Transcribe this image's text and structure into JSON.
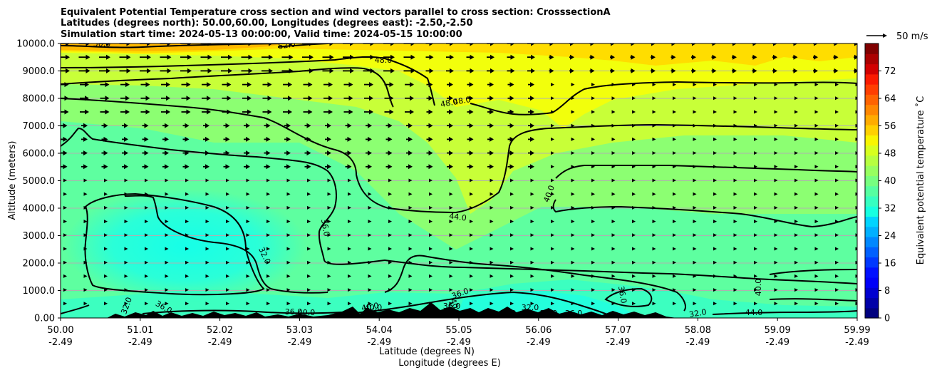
{
  "titles": [
    "Equivalent Potential Temperature cross section and wind vectors parallel to cross section: CrosssectionA",
    "Latitudes (degrees north): 50.00,60.00, Longitudes (degrees east): -2.50,-2.50",
    "Simulation start time: 2024-05-13 00:00:00, Valid time: 2024-05-15 10:00:00"
  ],
  "chart_data": {
    "type": "heatmap",
    "subtype": "filled contour cross section with contour lines and wind vectors",
    "xlabel": "Latitude (degrees N)",
    "xlabel2": "Longitude (degrees E)",
    "ylabel": "Altitude (meters)",
    "x_ticks": [
      {
        "lat": "50.00",
        "lon": "-2.49"
      },
      {
        "lat": "51.01",
        "lon": "-2.49"
      },
      {
        "lat": "52.02",
        "lon": "-2.49"
      },
      {
        "lat": "53.03",
        "lon": "-2.49"
      },
      {
        "lat": "54.04",
        "lon": "-2.49"
      },
      {
        "lat": "55.05",
        "lon": "-2.49"
      },
      {
        "lat": "56.06",
        "lon": "-2.49"
      },
      {
        "lat": "57.07",
        "lon": "-2.49"
      },
      {
        "lat": "58.08",
        "lon": "-2.49"
      },
      {
        "lat": "59.09",
        "lon": "-2.49"
      },
      {
        "lat": "59.99",
        "lon": "-2.49"
      }
    ],
    "y_ticks": [
      "0.00",
      "1000.0",
      "2000.0",
      "3000.0",
      "4000.0",
      "5000.0",
      "6000.0",
      "7000.0",
      "8000.0",
      "9000.0",
      "10000.0"
    ],
    "ylim": [
      0,
      10000
    ],
    "grid": "horizontal lines",
    "colorbar": {
      "label": "Equivalent potential temperature $^\\circ$C",
      "label_display": "Equivalent potential temperature ˚C",
      "range": [
        0,
        80
      ],
      "ticks": [
        "0",
        "8",
        "16",
        "24",
        "32",
        "40",
        "48",
        "56",
        "64",
        "72"
      ],
      "colors": [
        "#00007f",
        "#0000a8",
        "#0000d0",
        "#0000f8",
        "#0010ff",
        "#0038ff",
        "#0060ff",
        "#0088ff",
        "#00b0ff",
        "#00d4ff",
        "#16ffe1",
        "#36ffc1",
        "#56ffa1",
        "#77ff80",
        "#97ff60",
        "#b7ff40",
        "#d7ff1f",
        "#f8f500",
        "#ffd000",
        "#ffac00",
        "#ff8700",
        "#ff6300",
        "#ff3e00",
        "#fa1a00",
        "#d20000",
        "#aa0000",
        "#800000"
      ]
    },
    "quiver_key": {
      "label": "50 m/s",
      "speed": 50
    },
    "contour_labels": [
      "50.0",
      "52.0",
      "48.0",
      "48.0",
      "48.0",
      "44.0",
      "40.0",
      "36.0",
      "32.0",
      "36.0",
      "36.0",
      "36.0",
      "40.0",
      "40.0",
      "40.0",
      "40.0",
      "40.0",
      "32.0",
      "28.0",
      "36.0",
      "36.0",
      "32.0",
      "32.0",
      "40.0",
      "44.0",
      "36.0"
    ]
  }
}
